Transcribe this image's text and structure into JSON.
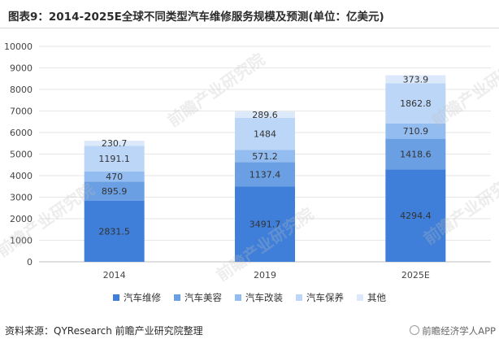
{
  "title": "图表9：2014-2025E全球不同类型汽车维修服务规模及预测(单位：亿美元)",
  "source": "资料来源：QYResearch 前瞻产业研究院整理",
  "brand": "前瞻经济学人APP",
  "watermark": "前瞻产业研究院",
  "chart_data": {
    "type": "bar",
    "stacked": true,
    "categories": [
      "2014",
      "2019",
      "2025E"
    ],
    "series": [
      {
        "name": "汽车维修",
        "color": "#3f7fd9",
        "values": [
          2831.5,
          3491.7,
          4294.4
        ]
      },
      {
        "name": "汽车美容",
        "color": "#6a9fe3",
        "values": [
          895.9,
          1137.4,
          1418.6
        ]
      },
      {
        "name": "汽车改装",
        "color": "#93bdf0",
        "values": [
          470,
          571.2,
          710.9
        ]
      },
      {
        "name": "汽车保养",
        "color": "#bcd6f7",
        "values": [
          1191.1,
          1484,
          1862.8
        ]
      },
      {
        "name": "其他",
        "color": "#dbe9fb",
        "values": [
          230.7,
          289.6,
          373.9
        ]
      }
    ],
    "data_labels": [
      [
        "2831.5",
        "3491.7",
        "4294.4"
      ],
      [
        "895.9",
        "1137.4",
        "1418.6"
      ],
      [
        "470",
        "571.2",
        "710.9"
      ],
      [
        "1191.1",
        "1484",
        "1862.8"
      ],
      [
        "230.7",
        "289.6",
        "373.9"
      ]
    ],
    "yticks": [
      "0",
      "1000",
      "2000",
      "3000",
      "4000",
      "5000",
      "6000",
      "7000",
      "8000",
      "9000",
      "10000"
    ],
    "ylim": [
      0,
      10000
    ],
    "grid": true,
    "legend_position": "bottom"
  }
}
